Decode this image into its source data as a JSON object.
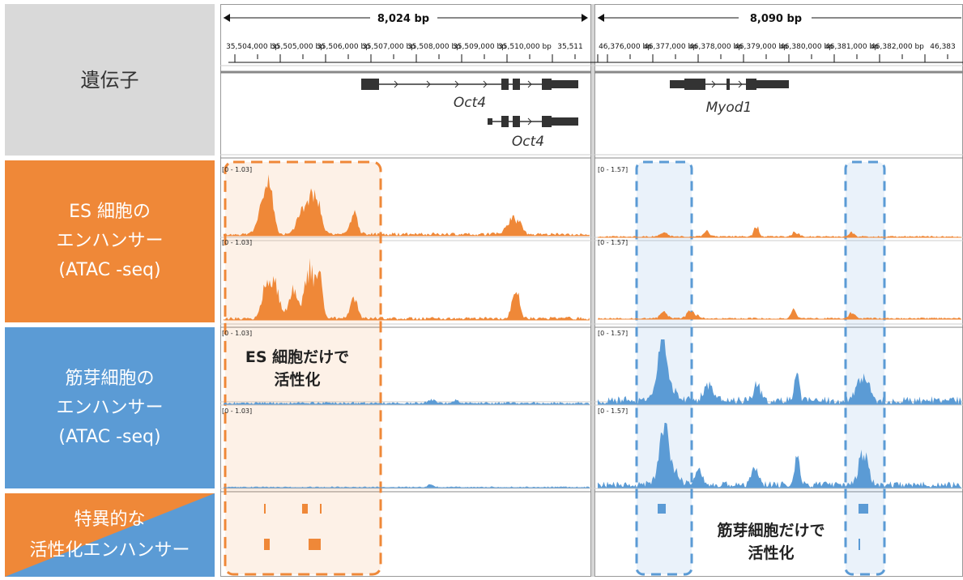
{
  "labels": {
    "genes": "遺伝子",
    "es": "ES 細胞の\nエンハンサー\n(ATAC -seq)",
    "myo": "筋芽細胞の\nエンハンサー\n(ATAC -seq)",
    "specific": "特異的な\n活性化エンハンサー"
  },
  "left_panel": {
    "span": "8,024 bp",
    "ticks": [
      "35,504,000",
      "35,505,000",
      "35,506,000",
      "35,507,000",
      "35,508,000",
      "35,509,000",
      "35,510,000",
      "35,511"
    ],
    "ticks_suffix": "bp",
    "genes": [
      "Oct4",
      "Oct4"
    ],
    "range": "[0 - 1.03]"
  },
  "right_panel": {
    "span": "8,090 bp",
    "ticks": [
      "46,376,000",
      "46,377,000",
      "46,378,000",
      "46,379,000",
      "46,380,000",
      "46,381,000",
      "46,382,000",
      "46,383"
    ],
    "ticks_suffix": "bp",
    "genes": [
      "Myod1"
    ],
    "range": "[0 - 1.57]"
  },
  "annotations": {
    "es_only": "ES 細胞だけで\n活性化",
    "myo_only": "筋芽細胞だけで\n活性化"
  },
  "colors": {
    "orange": "#ef8838",
    "blue": "#5b9bd5",
    "gray": "#d9d9d9",
    "gene": "#333333"
  }
}
